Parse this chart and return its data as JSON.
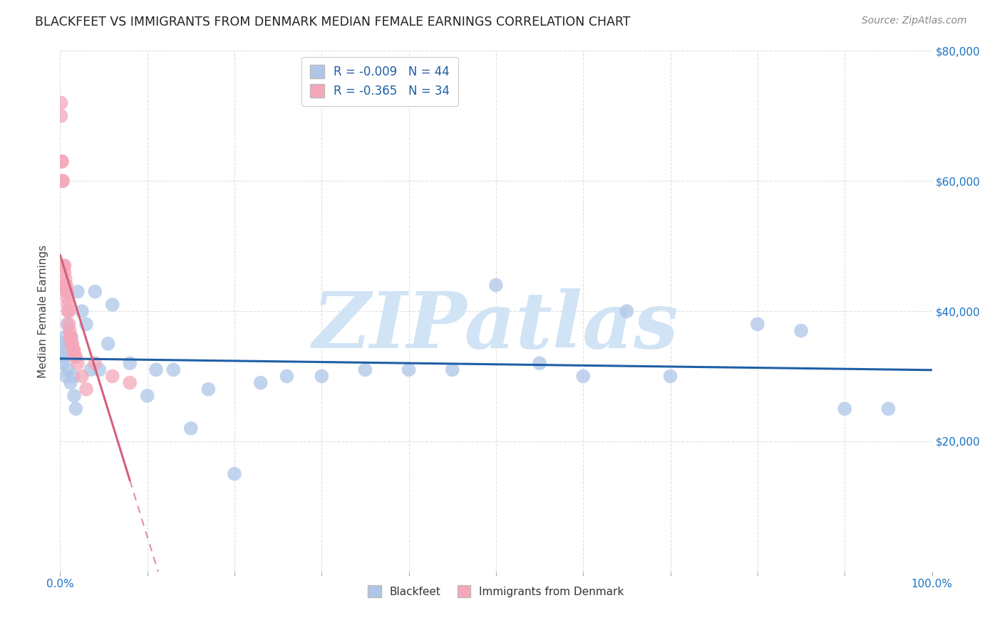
{
  "title": "BLACKFEET VS IMMIGRANTS FROM DENMARK MEDIAN FEMALE EARNINGS CORRELATION CHART",
  "source": "Source: ZipAtlas.com",
  "ylabel": "Median Female Earnings",
  "xlim": [
    0,
    1.0
  ],
  "ylim": [
    0,
    80000
  ],
  "xticks": [
    0.0,
    0.1,
    0.2,
    0.3,
    0.4,
    0.5,
    0.6,
    0.7,
    0.8,
    0.9,
    1.0
  ],
  "yticks": [
    0,
    20000,
    40000,
    60000,
    80000
  ],
  "ytick_labels": [
    "",
    "$20,000",
    "$40,000",
    "$60,000",
    "$80,000"
  ],
  "blue_R": "-0.009",
  "blue_N": "44",
  "pink_R": "-0.365",
  "pink_N": "34",
  "blackfeet_x": [
    0.002,
    0.003,
    0.004,
    0.005,
    0.006,
    0.007,
    0.008,
    0.009,
    0.01,
    0.012,
    0.013,
    0.015,
    0.016,
    0.018,
    0.02,
    0.025,
    0.03,
    0.035,
    0.04,
    0.045,
    0.055,
    0.06,
    0.08,
    0.1,
    0.11,
    0.13,
    0.15,
    0.17,
    0.2,
    0.23,
    0.26,
    0.3,
    0.35,
    0.4,
    0.45,
    0.5,
    0.55,
    0.6,
    0.65,
    0.7,
    0.8,
    0.85,
    0.9,
    0.95
  ],
  "blackfeet_y": [
    35000,
    32000,
    33000,
    36000,
    34000,
    30000,
    38000,
    31000,
    35000,
    29000,
    36000,
    30000,
    27000,
    25000,
    43000,
    40000,
    38000,
    31000,
    43000,
    31000,
    35000,
    41000,
    32000,
    27000,
    31000,
    31000,
    22000,
    28000,
    15000,
    29000,
    30000,
    30000,
    31000,
    31000,
    31000,
    44000,
    32000,
    30000,
    40000,
    30000,
    38000,
    37000,
    25000,
    25000
  ],
  "denmark_x": [
    0.001,
    0.001,
    0.002,
    0.002,
    0.003,
    0.003,
    0.004,
    0.005,
    0.005,
    0.006,
    0.006,
    0.007,
    0.007,
    0.008,
    0.008,
    0.009,
    0.009,
    0.01,
    0.01,
    0.011,
    0.012,
    0.012,
    0.013,
    0.014,
    0.015,
    0.016,
    0.017,
    0.018,
    0.02,
    0.025,
    0.03,
    0.04,
    0.06,
    0.08
  ],
  "denmark_y": [
    72000,
    70000,
    63000,
    63000,
    60000,
    60000,
    47000,
    47000,
    46000,
    45000,
    44000,
    44000,
    43000,
    43000,
    42000,
    41000,
    40000,
    40000,
    38000,
    37000,
    36000,
    36000,
    35000,
    35000,
    34000,
    34000,
    33000,
    33000,
    32000,
    30000,
    28000,
    32000,
    30000,
    29000
  ],
  "blue_color": "#aec6e8",
  "pink_color": "#f4a7b9",
  "blue_line_color": "#1f5fa6",
  "pink_line_color": "#d4607a",
  "watermark": "ZIPatlas",
  "watermark_color": "#d0e4f5",
  "legend_label_blue": "Blackfeet",
  "legend_label_pink": "Immigrants from Denmark",
  "background_color": "#ffffff",
  "grid_color": "#cccccc"
}
